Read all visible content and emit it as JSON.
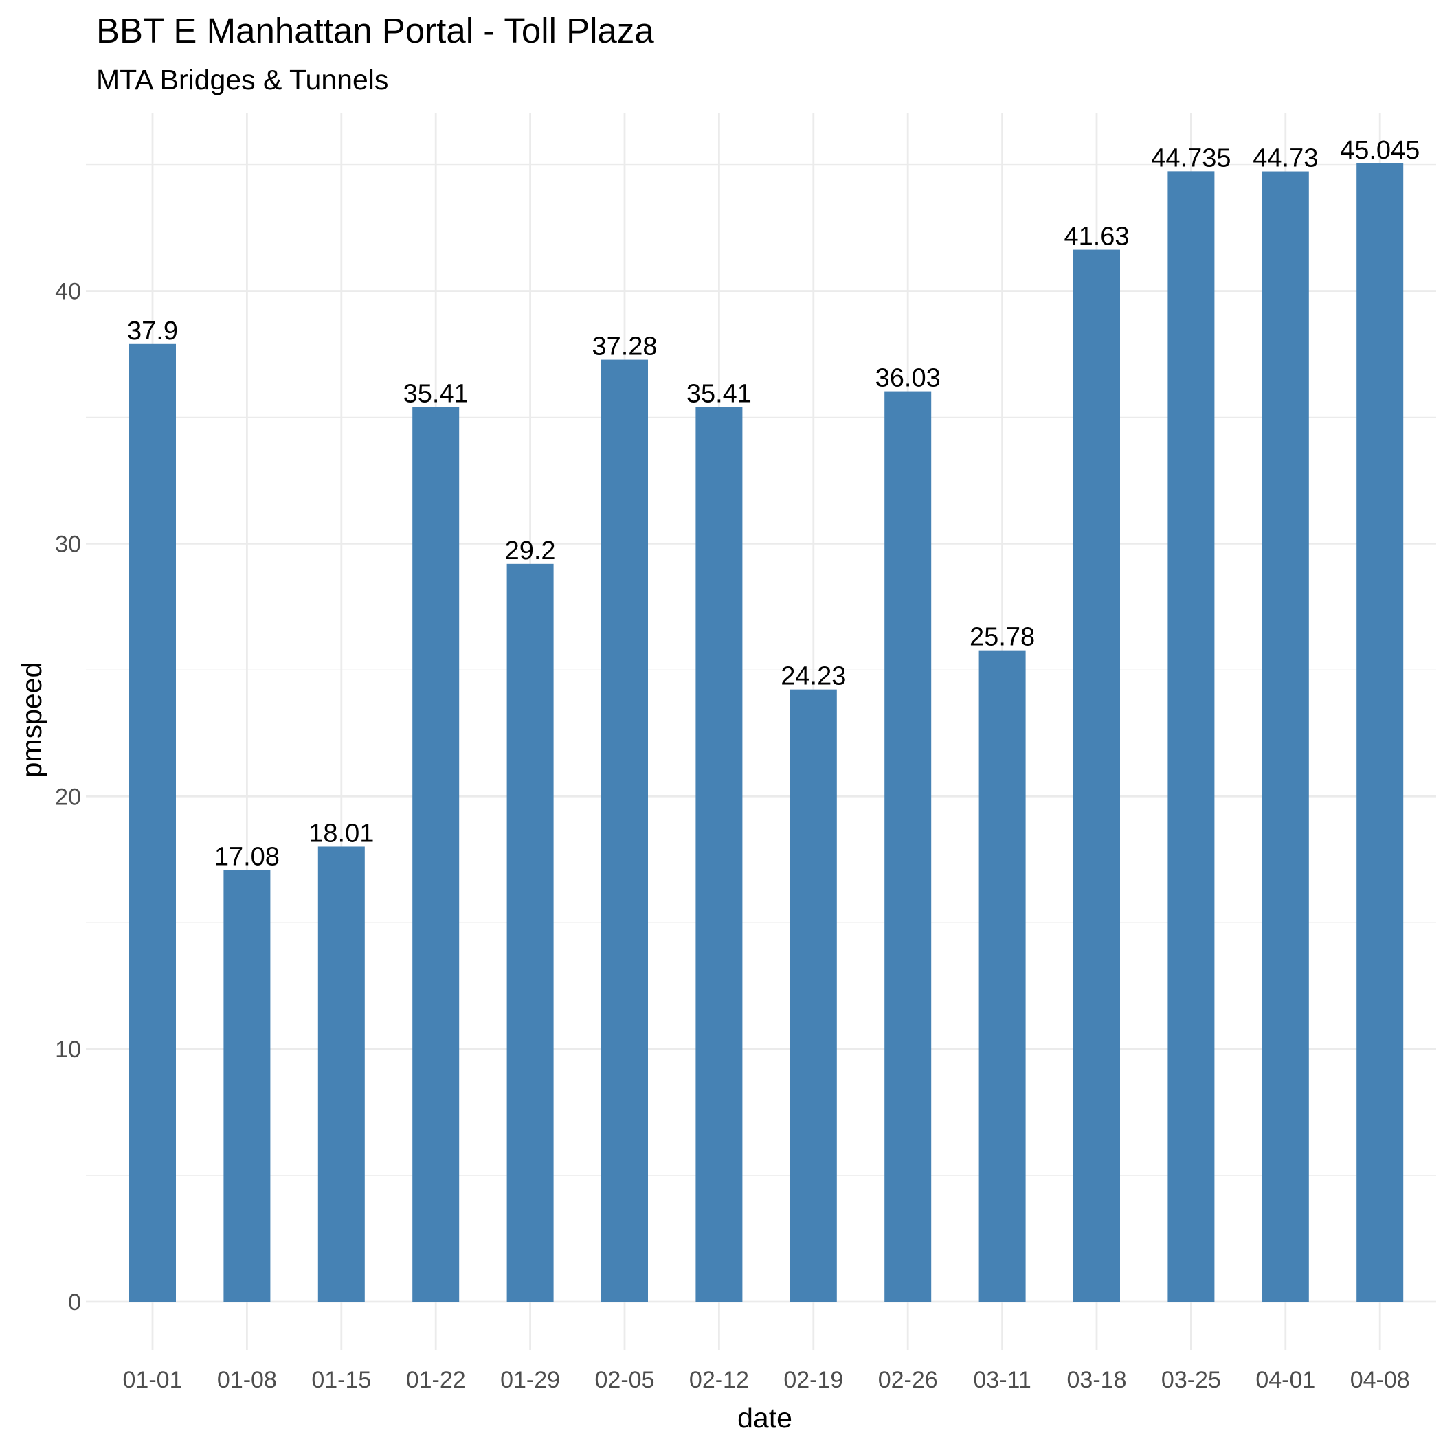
{
  "chart_data": {
    "type": "bar",
    "title": "BBT E Manhattan Portal - Toll Plaza",
    "subtitle": "MTA Bridges & Tunnels",
    "xlabel": "date",
    "ylabel": "pmspeed",
    "categories": [
      "01-01",
      "01-08",
      "01-15",
      "01-22",
      "01-29",
      "02-05",
      "02-12",
      "02-19",
      "02-26",
      "03-11",
      "03-18",
      "03-25",
      "04-01",
      "04-08"
    ],
    "values": [
      37.9,
      17.08,
      18.01,
      35.41,
      29.2,
      37.28,
      35.41,
      24.23,
      36.03,
      25.78,
      41.63,
      44.735,
      44.73,
      45.045
    ],
    "data_labels": [
      "37.9",
      "17.08",
      "18.01",
      "35.41",
      "29.2",
      "37.28",
      "35.41",
      "24.23",
      "36.03",
      "25.78",
      "41.63",
      "44.735",
      "44.73",
      "45.045"
    ],
    "ylim": [
      0,
      47.3
    ],
    "yticks": [
      0,
      10,
      20,
      30,
      40
    ],
    "grid": true,
    "legend": "none",
    "bar_color": "#4682b4"
  }
}
